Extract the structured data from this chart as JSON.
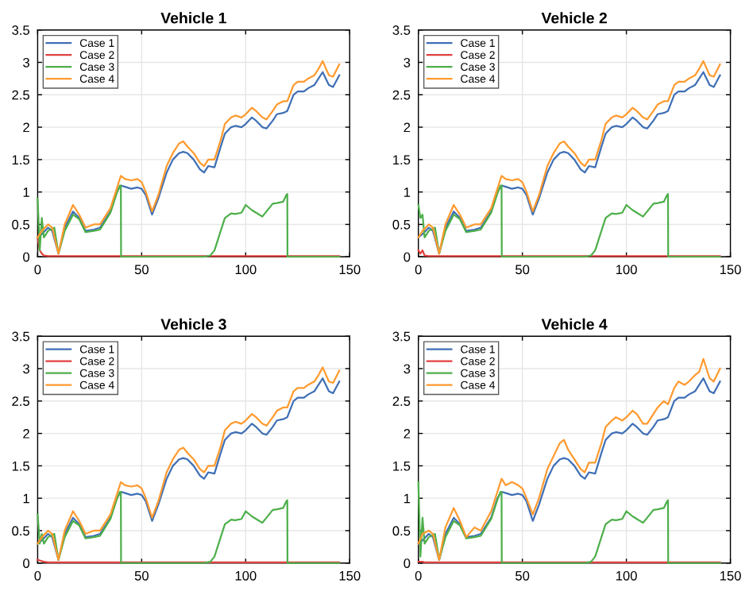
{
  "chart_data": [
    {
      "type": "line",
      "title": "Vehicle 1",
      "xlim": [
        0,
        150
      ],
      "ylim": [
        0,
        3.5
      ],
      "xticks": [
        0,
        50,
        100,
        150
      ],
      "yticks": [
        0,
        0.5,
        1,
        1.5,
        2,
        2.5,
        3,
        3.5
      ],
      "grid": true,
      "legend": "top left",
      "series": [
        {
          "name": "Case 1",
          "color": "#3f6fb5",
          "x": [
            0,
            2,
            5,
            7,
            10,
            13,
            17,
            20,
            23,
            27,
            30,
            35,
            38,
            40,
            42,
            45,
            48,
            50,
            52,
            55,
            58,
            62,
            65,
            68,
            70,
            72,
            75,
            78,
            80,
            82,
            85,
            88,
            90,
            93,
            95,
            98,
            100,
            103,
            105,
            108,
            110,
            113,
            115,
            118,
            120,
            123,
            125,
            128,
            130,
            133,
            135,
            137,
            140,
            142,
            145
          ],
          "values": [
            0.3,
            0.35,
            0.45,
            0.4,
            0.05,
            0.45,
            0.7,
            0.6,
            0.4,
            0.42,
            0.45,
            0.7,
            1.0,
            1.1,
            1.08,
            1.05,
            1.07,
            1.05,
            0.95,
            0.65,
            0.9,
            1.3,
            1.5,
            1.6,
            1.62,
            1.6,
            1.5,
            1.35,
            1.3,
            1.4,
            1.38,
            1.7,
            1.9,
            2.0,
            2.02,
            2.0,
            2.05,
            2.15,
            2.1,
            2.0,
            1.98,
            2.1,
            2.2,
            2.22,
            2.25,
            2.5,
            2.55,
            2.55,
            2.6,
            2.65,
            2.75,
            2.85,
            2.65,
            2.62,
            2.8
          ]
        },
        {
          "name": "Case 2",
          "color": "#e0413f",
          "x": [
            0,
            1,
            2,
            3,
            5,
            145
          ],
          "values": [
            0.3,
            0.1,
            0.05,
            0.02,
            0.01,
            0.01
          ]
        },
        {
          "name": "Case 3",
          "color": "#4daf4a",
          "x": [
            0,
            1,
            2,
            3,
            5,
            8,
            10,
            13,
            17,
            20,
            23,
            27,
            30,
            35,
            38,
            39.5,
            40,
            40.1,
            45,
            60,
            80,
            83,
            85,
            88,
            90,
            93,
            95,
            98,
            100,
            103,
            105,
            108,
            110,
            113,
            115,
            118,
            119.5,
            120,
            120.1,
            130,
            145
          ],
          "values": [
            0.9,
            0.1,
            0.6,
            0.3,
            0.4,
            0.45,
            0.05,
            0.4,
            0.65,
            0.58,
            0.38,
            0.4,
            0.42,
            0.68,
            0.98,
            1.1,
            1.1,
            0,
            0,
            0,
            0,
            0.02,
            0.1,
            0.4,
            0.6,
            0.67,
            0.66,
            0.68,
            0.8,
            0.72,
            0.68,
            0.62,
            0.7,
            0.82,
            0.83,
            0.85,
            0.95,
            0.97,
            0,
            0,
            0
          ]
        },
        {
          "name": "Case 4",
          "color": "#ff9a2e",
          "x": [
            0,
            2,
            5,
            7,
            10,
            13,
            17,
            20,
            23,
            27,
            30,
            35,
            38,
            40,
            42,
            45,
            48,
            50,
            52,
            55,
            58,
            62,
            65,
            68,
            70,
            72,
            75,
            78,
            80,
            82,
            85,
            88,
            90,
            93,
            95,
            98,
            100,
            103,
            105,
            108,
            110,
            113,
            115,
            118,
            120,
            123,
            125,
            128,
            130,
            133,
            135,
            137,
            140,
            142,
            145
          ],
          "values": [
            0.3,
            0.4,
            0.5,
            0.45,
            0.05,
            0.5,
            0.8,
            0.65,
            0.45,
            0.5,
            0.5,
            0.75,
            1.05,
            1.25,
            1.2,
            1.18,
            1.2,
            1.15,
            1.0,
            0.7,
            0.95,
            1.4,
            1.6,
            1.75,
            1.78,
            1.7,
            1.6,
            1.45,
            1.4,
            1.5,
            1.5,
            1.8,
            2.05,
            2.15,
            2.18,
            2.15,
            2.2,
            2.3,
            2.25,
            2.15,
            2.12,
            2.25,
            2.35,
            2.4,
            2.4,
            2.65,
            2.7,
            2.7,
            2.75,
            2.8,
            2.9,
            3.02,
            2.8,
            2.78,
            2.97
          ]
        }
      ]
    },
    {
      "type": "line",
      "title": "Vehicle 2",
      "xlim": [
        0,
        150
      ],
      "ylim": [
        0,
        3.5
      ],
      "xticks": [
        0,
        50,
        100,
        150
      ],
      "yticks": [
        0,
        0.5,
        1,
        1.5,
        2,
        2.5,
        3,
        3.5
      ],
      "grid": true,
      "legend": "top left",
      "series": [
        {
          "name": "Case 1",
          "color": "#3f6fb5",
          "x": [
            0,
            2,
            5,
            7,
            10,
            13,
            17,
            20,
            23,
            27,
            30,
            35,
            38,
            40,
            42,
            45,
            48,
            50,
            52,
            55,
            58,
            62,
            65,
            68,
            70,
            72,
            75,
            78,
            80,
            82,
            85,
            88,
            90,
            93,
            95,
            98,
            100,
            103,
            105,
            108,
            110,
            113,
            115,
            118,
            120,
            123,
            125,
            128,
            130,
            133,
            135,
            137,
            140,
            142,
            145
          ],
          "values": [
            0.3,
            0.35,
            0.45,
            0.4,
            0.05,
            0.45,
            0.7,
            0.6,
            0.4,
            0.42,
            0.45,
            0.7,
            1.0,
            1.1,
            1.08,
            1.05,
            1.07,
            1.05,
            0.95,
            0.65,
            0.9,
            1.3,
            1.5,
            1.6,
            1.62,
            1.6,
            1.5,
            1.35,
            1.3,
            1.4,
            1.38,
            1.7,
            1.9,
            2.0,
            2.02,
            2.0,
            2.05,
            2.15,
            2.1,
            2.0,
            1.98,
            2.1,
            2.2,
            2.22,
            2.25,
            2.5,
            2.55,
            2.55,
            2.6,
            2.65,
            2.75,
            2.85,
            2.65,
            2.62,
            2.8
          ]
        },
        {
          "name": "Case 2",
          "color": "#e0413f",
          "x": [
            0,
            1,
            2,
            3,
            5,
            145
          ],
          "values": [
            0.1,
            0.05,
            0.1,
            0.02,
            0.01,
            0.01
          ]
        },
        {
          "name": "Case 3",
          "color": "#4daf4a",
          "x": [
            0,
            1,
            2,
            3,
            5,
            8,
            10,
            13,
            17,
            20,
            23,
            27,
            30,
            35,
            38,
            39.5,
            40,
            40.1,
            45,
            60,
            80,
            83,
            85,
            88,
            90,
            93,
            95,
            98,
            100,
            103,
            105,
            108,
            110,
            113,
            115,
            118,
            119.5,
            120,
            120.1,
            130,
            145
          ],
          "values": [
            0.8,
            0.6,
            0.65,
            0.3,
            0.4,
            0.45,
            0.05,
            0.4,
            0.65,
            0.58,
            0.38,
            0.4,
            0.42,
            0.68,
            0.98,
            1.1,
            1.1,
            0,
            0,
            0,
            0,
            0.02,
            0.1,
            0.4,
            0.6,
            0.67,
            0.66,
            0.68,
            0.8,
            0.72,
            0.68,
            0.62,
            0.7,
            0.82,
            0.83,
            0.85,
            0.95,
            0.97,
            0,
            0,
            0
          ]
        },
        {
          "name": "Case 4",
          "color": "#ff9a2e",
          "x": [
            0,
            2,
            5,
            7,
            10,
            13,
            17,
            20,
            23,
            27,
            30,
            35,
            38,
            40,
            42,
            45,
            48,
            50,
            52,
            55,
            58,
            62,
            65,
            68,
            70,
            72,
            75,
            78,
            80,
            82,
            85,
            88,
            90,
            93,
            95,
            98,
            100,
            103,
            105,
            108,
            110,
            113,
            115,
            118,
            120,
            123,
            125,
            128,
            130,
            133,
            135,
            137,
            140,
            142,
            145
          ],
          "values": [
            0.3,
            0.4,
            0.5,
            0.45,
            0.05,
            0.5,
            0.8,
            0.65,
            0.45,
            0.5,
            0.5,
            0.75,
            1.05,
            1.25,
            1.2,
            1.18,
            1.2,
            1.15,
            1.0,
            0.7,
            0.95,
            1.4,
            1.6,
            1.75,
            1.78,
            1.7,
            1.6,
            1.45,
            1.4,
            1.5,
            1.5,
            1.8,
            2.05,
            2.15,
            2.18,
            2.15,
            2.2,
            2.3,
            2.25,
            2.15,
            2.12,
            2.25,
            2.35,
            2.4,
            2.4,
            2.65,
            2.7,
            2.7,
            2.75,
            2.8,
            2.9,
            3.02,
            2.8,
            2.78,
            2.97
          ]
        }
      ]
    },
    {
      "type": "line",
      "title": "Vehicle 3",
      "xlim": [
        0,
        150
      ],
      "ylim": [
        0,
        3.5
      ],
      "xticks": [
        0,
        50,
        100,
        150
      ],
      "yticks": [
        0,
        0.5,
        1,
        1.5,
        2,
        2.5,
        3,
        3.5
      ],
      "grid": true,
      "legend": "top left",
      "series": [
        {
          "name": "Case 1",
          "color": "#3f6fb5",
          "x": [
            0,
            2,
            5,
            7,
            10,
            13,
            17,
            20,
            23,
            27,
            30,
            35,
            38,
            40,
            42,
            45,
            48,
            50,
            52,
            55,
            58,
            62,
            65,
            68,
            70,
            72,
            75,
            78,
            80,
            82,
            85,
            88,
            90,
            93,
            95,
            98,
            100,
            103,
            105,
            108,
            110,
            113,
            115,
            118,
            120,
            123,
            125,
            128,
            130,
            133,
            135,
            137,
            140,
            142,
            145
          ],
          "values": [
            0.3,
            0.35,
            0.45,
            0.4,
            0.05,
            0.45,
            0.7,
            0.6,
            0.4,
            0.42,
            0.45,
            0.7,
            1.0,
            1.1,
            1.08,
            1.05,
            1.07,
            1.05,
            0.95,
            0.65,
            0.9,
            1.3,
            1.5,
            1.6,
            1.62,
            1.6,
            1.5,
            1.35,
            1.3,
            1.4,
            1.38,
            1.7,
            1.9,
            2.0,
            2.02,
            2.0,
            2.05,
            2.15,
            2.1,
            2.0,
            1.98,
            2.1,
            2.2,
            2.22,
            2.25,
            2.5,
            2.55,
            2.55,
            2.6,
            2.65,
            2.75,
            2.85,
            2.65,
            2.62,
            2.8
          ]
        },
        {
          "name": "Case 2",
          "color": "#e0413f",
          "x": [
            0,
            1,
            2,
            3,
            5,
            145
          ],
          "values": [
            0.05,
            0.04,
            0.03,
            0.02,
            0.01,
            0.01
          ]
        },
        {
          "name": "Case 3",
          "color": "#4daf4a",
          "x": [
            0,
            1,
            2,
            3,
            5,
            8,
            10,
            13,
            17,
            20,
            23,
            27,
            30,
            35,
            38,
            39.5,
            40,
            40.1,
            45,
            60,
            80,
            83,
            85,
            88,
            90,
            93,
            95,
            98,
            100,
            103,
            105,
            108,
            110,
            113,
            115,
            118,
            119.5,
            120,
            120.1,
            130,
            145
          ],
          "values": [
            0.75,
            0.3,
            0.45,
            0.3,
            0.4,
            0.45,
            0.05,
            0.4,
            0.65,
            0.58,
            0.38,
            0.4,
            0.42,
            0.68,
            0.98,
            1.1,
            1.1,
            0,
            0,
            0,
            0,
            0.02,
            0.1,
            0.4,
            0.6,
            0.67,
            0.66,
            0.68,
            0.8,
            0.72,
            0.68,
            0.62,
            0.7,
            0.82,
            0.83,
            0.85,
            0.95,
            0.97,
            0,
            0,
            0
          ]
        },
        {
          "name": "Case 4",
          "color": "#ff9a2e",
          "x": [
            0,
            2,
            5,
            7,
            10,
            13,
            17,
            20,
            23,
            27,
            30,
            35,
            38,
            40,
            42,
            45,
            48,
            50,
            52,
            55,
            58,
            62,
            65,
            68,
            70,
            72,
            75,
            78,
            80,
            82,
            85,
            88,
            90,
            93,
            95,
            98,
            100,
            103,
            105,
            108,
            110,
            113,
            115,
            118,
            120,
            123,
            125,
            128,
            130,
            133,
            135,
            137,
            140,
            142,
            145
          ],
          "values": [
            0.3,
            0.4,
            0.5,
            0.45,
            0.05,
            0.5,
            0.8,
            0.65,
            0.45,
            0.5,
            0.5,
            0.75,
            1.05,
            1.25,
            1.2,
            1.18,
            1.2,
            1.15,
            1.0,
            0.7,
            0.95,
            1.4,
            1.6,
            1.75,
            1.78,
            1.7,
            1.6,
            1.45,
            1.4,
            1.5,
            1.5,
            1.8,
            2.05,
            2.15,
            2.18,
            2.15,
            2.2,
            2.3,
            2.25,
            2.15,
            2.12,
            2.25,
            2.35,
            2.4,
            2.4,
            2.65,
            2.7,
            2.7,
            2.75,
            2.8,
            2.9,
            3.02,
            2.8,
            2.78,
            2.97
          ]
        }
      ]
    },
    {
      "type": "line",
      "title": "Vehicle 4",
      "xlim": [
        0,
        150
      ],
      "ylim": [
        0,
        3.5
      ],
      "xticks": [
        0,
        50,
        100,
        150
      ],
      "yticks": [
        0,
        0.5,
        1,
        1.5,
        2,
        2.5,
        3,
        3.5
      ],
      "grid": true,
      "legend": "top left",
      "series": [
        {
          "name": "Case 1",
          "color": "#3f6fb5",
          "x": [
            0,
            2,
            5,
            7,
            10,
            13,
            17,
            20,
            23,
            27,
            30,
            35,
            38,
            40,
            42,
            45,
            48,
            50,
            52,
            55,
            58,
            62,
            65,
            68,
            70,
            72,
            75,
            78,
            80,
            82,
            85,
            88,
            90,
            93,
            95,
            98,
            100,
            103,
            105,
            108,
            110,
            113,
            115,
            118,
            120,
            123,
            125,
            128,
            130,
            133,
            135,
            137,
            140,
            142,
            145
          ],
          "values": [
            0.3,
            0.35,
            0.45,
            0.4,
            0.05,
            0.45,
            0.7,
            0.6,
            0.4,
            0.42,
            0.45,
            0.7,
            1.0,
            1.1,
            1.08,
            1.05,
            1.07,
            1.05,
            0.95,
            0.65,
            0.9,
            1.3,
            1.5,
            1.6,
            1.62,
            1.6,
            1.5,
            1.35,
            1.3,
            1.4,
            1.38,
            1.7,
            1.9,
            2.0,
            2.02,
            2.0,
            2.05,
            2.15,
            2.1,
            2.0,
            1.98,
            2.1,
            2.2,
            2.22,
            2.25,
            2.5,
            2.55,
            2.55,
            2.6,
            2.65,
            2.75,
            2.85,
            2.65,
            2.62,
            2.8
          ]
        },
        {
          "name": "Case 2",
          "color": "#e0413f",
          "x": [
            0,
            1,
            2,
            3,
            5,
            145
          ],
          "values": [
            0.02,
            0.02,
            0.02,
            0.01,
            0.01,
            0.01
          ]
        },
        {
          "name": "Case 3",
          "color": "#4daf4a",
          "x": [
            0,
            1,
            2,
            3,
            5,
            8,
            10,
            13,
            17,
            20,
            23,
            27,
            30,
            35,
            38,
            39.5,
            40,
            40.1,
            45,
            60,
            80,
            83,
            85,
            88,
            90,
            93,
            95,
            98,
            100,
            103,
            105,
            108,
            110,
            113,
            115,
            118,
            119.5,
            120,
            120.1,
            130,
            145
          ],
          "values": [
            1.25,
            0.1,
            0.7,
            0.3,
            0.4,
            0.45,
            0.05,
            0.4,
            0.65,
            0.58,
            0.38,
            0.4,
            0.42,
            0.68,
            0.98,
            1.1,
            1.1,
            0,
            0,
            0,
            0,
            0.02,
            0.1,
            0.4,
            0.6,
            0.67,
            0.66,
            0.68,
            0.8,
            0.72,
            0.68,
            0.62,
            0.7,
            0.82,
            0.83,
            0.85,
            0.95,
            0.97,
            0,
            0,
            0
          ]
        },
        {
          "name": "Case 4",
          "color": "#ff9a2e",
          "x": [
            0,
            2,
            5,
            7,
            10,
            13,
            17,
            20,
            23,
            27,
            30,
            35,
            38,
            40,
            42,
            45,
            48,
            50,
            52,
            55,
            58,
            62,
            65,
            68,
            70,
            72,
            75,
            78,
            80,
            82,
            85,
            88,
            90,
            93,
            95,
            98,
            100,
            103,
            105,
            108,
            110,
            113,
            115,
            118,
            120,
            123,
            125,
            128,
            130,
            133,
            135,
            137,
            140,
            142,
            145
          ],
          "values": [
            0.3,
            0.45,
            0.5,
            0.45,
            0.05,
            0.55,
            0.85,
            0.65,
            0.4,
            0.55,
            0.5,
            0.8,
            1.1,
            1.3,
            1.2,
            1.25,
            1.2,
            1.15,
            1.0,
            0.75,
            1.0,
            1.45,
            1.65,
            1.85,
            1.9,
            1.75,
            1.6,
            1.45,
            1.4,
            1.55,
            1.55,
            1.85,
            2.1,
            2.2,
            2.25,
            2.2,
            2.25,
            2.35,
            2.3,
            2.15,
            2.15,
            2.3,
            2.4,
            2.5,
            2.45,
            2.7,
            2.8,
            2.75,
            2.8,
            2.9,
            2.95,
            3.15,
            2.85,
            2.8,
            3.0
          ]
        }
      ]
    }
  ]
}
